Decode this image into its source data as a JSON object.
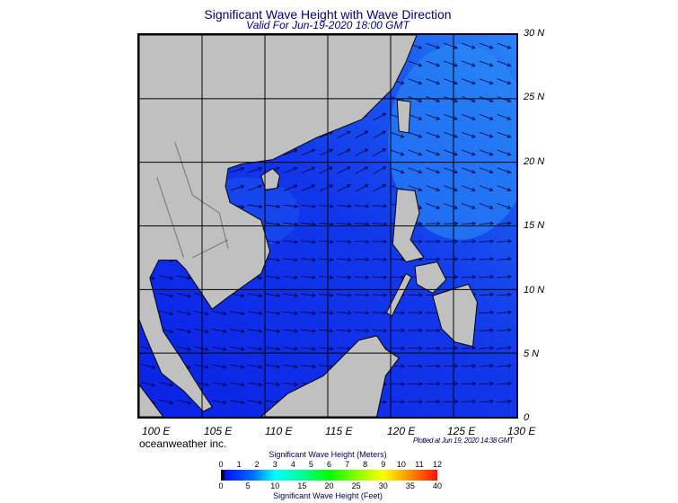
{
  "header": {
    "title": "Significant Wave Height with Wave Direction",
    "subtitle": "Valid For Jun-19-2020 18:00 GMT"
  },
  "map": {
    "lon_range": [
      100,
      130
    ],
    "lat_range": [
      0,
      30
    ],
    "lon_labels": [
      "100 E",
      "105 E",
      "110 E",
      "115 E",
      "120 E",
      "125 E",
      "130 E"
    ],
    "lat_labels": [
      "30 N",
      "25 N",
      "20 N",
      "15 N",
      "10 N",
      "5 N",
      "0"
    ],
    "colors": {
      "land": "#c0c0c0",
      "ocean_low": "#0a22e6",
      "ocean_mid": "#1a5af2",
      "ocean_high": "#2a86f6",
      "grid": "#000000"
    }
  },
  "footer": {
    "brand": "oceanweather inc.",
    "plotted": "Plotted at Jun 19, 2020 14:38 GMT"
  },
  "legend": {
    "meters_title": "Significant Wave Height (Meters)",
    "feet_title": "Significant Wave Height (Feet)",
    "meters_ticks": [
      "0",
      "1",
      "2",
      "3",
      "4",
      "5",
      "6",
      "7",
      "8",
      "9",
      "10",
      "11",
      "12"
    ],
    "feet_ticks": [
      "0",
      "5",
      "10",
      "15",
      "20",
      "25",
      "30",
      "35",
      "40"
    ]
  }
}
